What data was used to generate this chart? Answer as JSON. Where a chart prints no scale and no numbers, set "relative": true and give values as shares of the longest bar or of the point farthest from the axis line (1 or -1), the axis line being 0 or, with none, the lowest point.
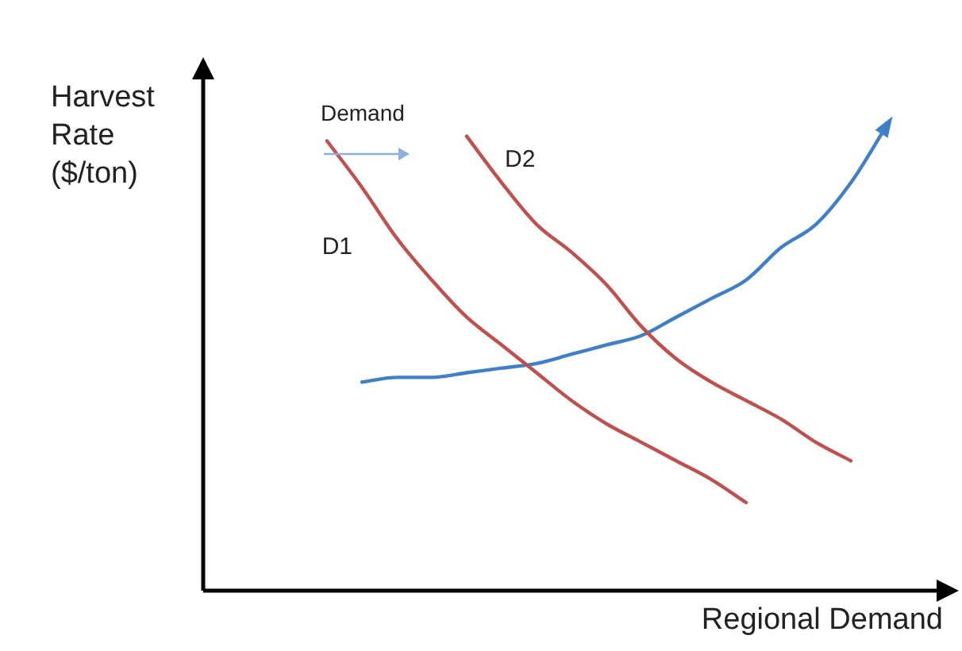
{
  "chart_data": {
    "type": "line",
    "relative": true,
    "xlabel": "Regional Demand",
    "ylabel": "Harvest Rate ($/ton)",
    "annotations": [
      "Demand"
    ],
    "grid": false,
    "legend": false,
    "marker": "none",
    "line_style": "solid",
    "categories": [
      null,
      null,
      null,
      null,
      null,
      null,
      null,
      null,
      null,
      null,
      null,
      null,
      null,
      null,
      null,
      null,
      null,
      null,
      null,
      null,
      null
    ],
    "series": [
      {
        "name": "D1",
        "color": "#c0504d",
        "values": [
          null,
          null,
          null,
          0.97,
          0.87,
          0.76,
          0.67,
          0.59,
          0.53,
          0.47,
          0.41,
          0.36,
          0.32,
          0.28,
          0.24,
          0.19,
          null,
          null,
          null,
          null,
          null
        ]
      },
      {
        "name": "D2",
        "color": "#c0504d",
        "values": [
          null,
          null,
          null,
          null,
          null,
          null,
          null,
          0.98,
          0.88,
          0.79,
          0.73,
          0.66,
          0.57,
          0.5,
          0.45,
          0.41,
          0.37,
          0.32,
          0.28,
          null,
          null
        ]
      },
      {
        "color": "#3f7fc8",
        "values": [
          null,
          null,
          null,
          null,
          0.45,
          0.46,
          0.46,
          0.47,
          0.48,
          0.49,
          0.51,
          0.53,
          0.55,
          0.59,
          0.63,
          0.67,
          0.74,
          0.79,
          0.88,
          1,
          null
        ]
      }
    ]
  }
}
